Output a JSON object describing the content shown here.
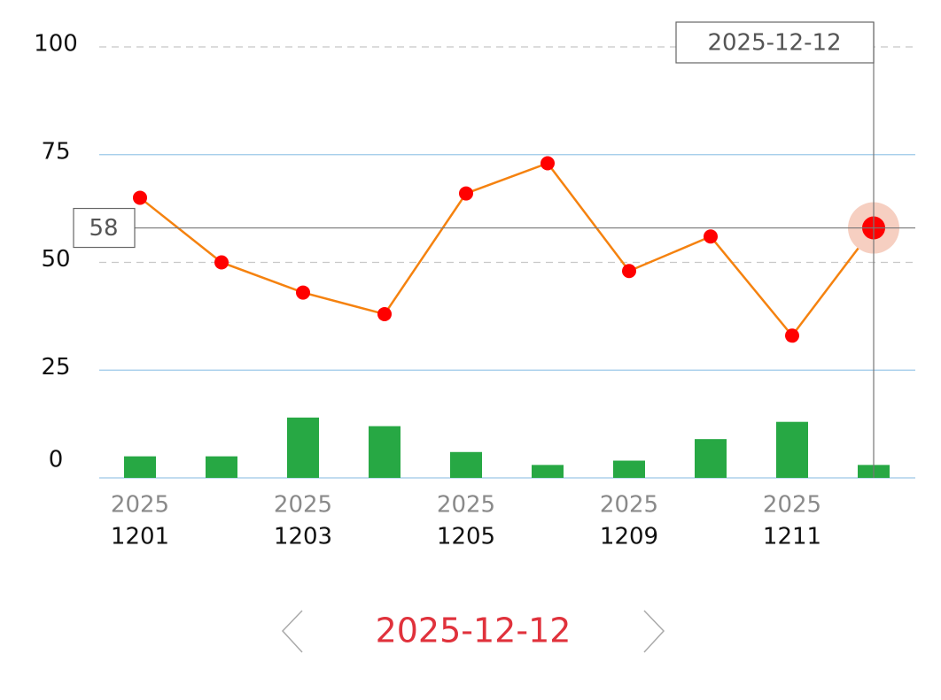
{
  "chart_data": {
    "type": "line",
    "categories": [
      "1201",
      null,
      "1203",
      null,
      "1205",
      null,
      "1209",
      null,
      "1211",
      null
    ],
    "category_years": [
      "2025",
      null,
      "2025",
      null,
      "2025",
      null,
      "2025",
      null,
      "2025",
      null
    ],
    "series": [
      {
        "type": "line",
        "color": "#f5820f",
        "marker_color": "#ff0000",
        "values": [
          65,
          50,
          43,
          38,
          66,
          73,
          48,
          56,
          33,
          58
        ]
      },
      {
        "type": "bar",
        "color": "#27a844",
        "values": [
          5,
          5,
          14,
          12,
          6,
          3,
          4,
          9,
          13,
          3
        ]
      }
    ],
    "ylim": [
      0,
      100
    ],
    "yticks": [
      0,
      25,
      50,
      75,
      100
    ],
    "grid": true,
    "highlight_index": 9,
    "selected_date": "2025-12-12"
  }
}
